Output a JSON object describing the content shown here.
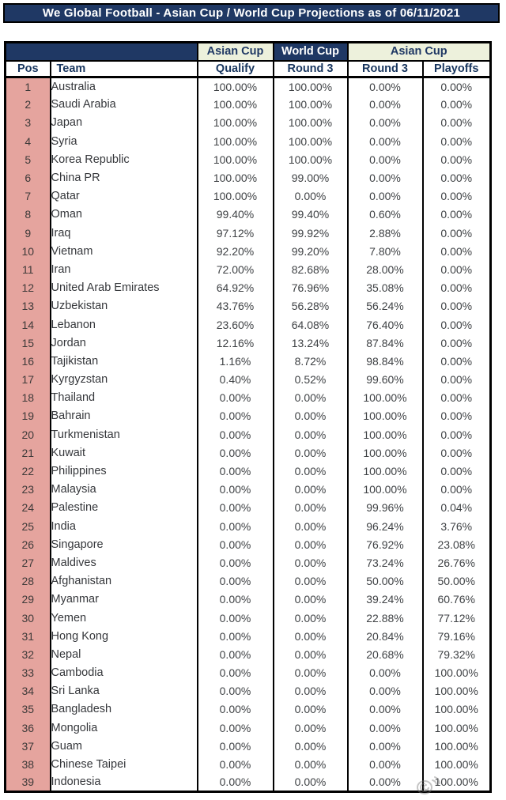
{
  "title": "We Global Football - Asian Cup / World Cup Projections as of 06/11/2021",
  "colors": {
    "header_navy": "#1F3864",
    "group_cream": "#EDF1DC",
    "pos_pink": "#E5A49E",
    "body_text": "#3F4245",
    "border": "#000000"
  },
  "watermark_icon": "weibo-logo",
  "chart_data": {
    "type": "table",
    "title": "We Global Football - Asian Cup / World Cup Projections as of 06/11/2021",
    "column_groups": [
      {
        "label": "",
        "span": 2
      },
      {
        "label": "Asian Cup",
        "span": 1
      },
      {
        "label": "World Cup",
        "span": 1
      },
      {
        "label": "Asian Cup",
        "span": 2
      }
    ],
    "columns": [
      "Pos",
      "Team",
      "Qualify",
      "Round 3",
      "Round 3",
      "Playoffs"
    ],
    "rows": [
      [
        1,
        "Australia",
        "100.00%",
        "100.00%",
        "0.00%",
        "0.00%"
      ],
      [
        2,
        "Saudi Arabia",
        "100.00%",
        "100.00%",
        "0.00%",
        "0.00%"
      ],
      [
        3,
        "Japan",
        "100.00%",
        "100.00%",
        "0.00%",
        "0.00%"
      ],
      [
        4,
        "Syria",
        "100.00%",
        "100.00%",
        "0.00%",
        "0.00%"
      ],
      [
        5,
        "Korea Republic",
        "100.00%",
        "100.00%",
        "0.00%",
        "0.00%"
      ],
      [
        6,
        "China PR",
        "100.00%",
        "99.00%",
        "0.00%",
        "0.00%"
      ],
      [
        7,
        "Qatar",
        "100.00%",
        "0.00%",
        "0.00%",
        "0.00%"
      ],
      [
        8,
        "Oman",
        "99.40%",
        "99.40%",
        "0.60%",
        "0.00%"
      ],
      [
        9,
        "Iraq",
        "97.12%",
        "99.92%",
        "2.88%",
        "0.00%"
      ],
      [
        10,
        "Vietnam",
        "92.20%",
        "99.20%",
        "7.80%",
        "0.00%"
      ],
      [
        11,
        "Iran",
        "72.00%",
        "82.68%",
        "28.00%",
        "0.00%"
      ],
      [
        12,
        "United Arab Emirates",
        "64.92%",
        "76.96%",
        "35.08%",
        "0.00%"
      ],
      [
        13,
        "Uzbekistan",
        "43.76%",
        "56.28%",
        "56.24%",
        "0.00%"
      ],
      [
        14,
        "Lebanon",
        "23.60%",
        "64.08%",
        "76.40%",
        "0.00%"
      ],
      [
        15,
        "Jordan",
        "12.16%",
        "13.24%",
        "87.84%",
        "0.00%"
      ],
      [
        16,
        "Tajikistan",
        "1.16%",
        "8.72%",
        "98.84%",
        "0.00%"
      ],
      [
        17,
        "Kyrgyzstan",
        "0.40%",
        "0.52%",
        "99.60%",
        "0.00%"
      ],
      [
        18,
        "Thailand",
        "0.00%",
        "0.00%",
        "100.00%",
        "0.00%"
      ],
      [
        19,
        "Bahrain",
        "0.00%",
        "0.00%",
        "100.00%",
        "0.00%"
      ],
      [
        20,
        "Turkmenistan",
        "0.00%",
        "0.00%",
        "100.00%",
        "0.00%"
      ],
      [
        21,
        "Kuwait",
        "0.00%",
        "0.00%",
        "100.00%",
        "0.00%"
      ],
      [
        22,
        "Philippines",
        "0.00%",
        "0.00%",
        "100.00%",
        "0.00%"
      ],
      [
        23,
        "Malaysia",
        "0.00%",
        "0.00%",
        "100.00%",
        "0.00%"
      ],
      [
        24,
        "Palestine",
        "0.00%",
        "0.00%",
        "99.96%",
        "0.04%"
      ],
      [
        25,
        "India",
        "0.00%",
        "0.00%",
        "96.24%",
        "3.76%"
      ],
      [
        26,
        "Singapore",
        "0.00%",
        "0.00%",
        "76.92%",
        "23.08%"
      ],
      [
        27,
        "Maldives",
        "0.00%",
        "0.00%",
        "73.24%",
        "26.76%"
      ],
      [
        28,
        "Afghanistan",
        "0.00%",
        "0.00%",
        "50.00%",
        "50.00%"
      ],
      [
        29,
        "Myanmar",
        "0.00%",
        "0.00%",
        "39.24%",
        "60.76%"
      ],
      [
        30,
        "Yemen",
        "0.00%",
        "0.00%",
        "22.88%",
        "77.12%"
      ],
      [
        31,
        "Hong Kong",
        "0.00%",
        "0.00%",
        "20.84%",
        "79.16%"
      ],
      [
        32,
        "Nepal",
        "0.00%",
        "0.00%",
        "20.68%",
        "79.32%"
      ],
      [
        33,
        "Cambodia",
        "0.00%",
        "0.00%",
        "0.00%",
        "100.00%"
      ],
      [
        34,
        "Sri Lanka",
        "0.00%",
        "0.00%",
        "0.00%",
        "100.00%"
      ],
      [
        35,
        "Bangladesh",
        "0.00%",
        "0.00%",
        "0.00%",
        "100.00%"
      ],
      [
        36,
        "Mongolia",
        "0.00%",
        "0.00%",
        "0.00%",
        "100.00%"
      ],
      [
        37,
        "Guam",
        "0.00%",
        "0.00%",
        "0.00%",
        "100.00%"
      ],
      [
        38,
        "Chinese Taipei",
        "0.00%",
        "0.00%",
        "0.00%",
        "100.00%"
      ],
      [
        39,
        "Indonesia",
        "0.00%",
        "0.00%",
        "0.00%",
        "100.00%"
      ]
    ]
  }
}
